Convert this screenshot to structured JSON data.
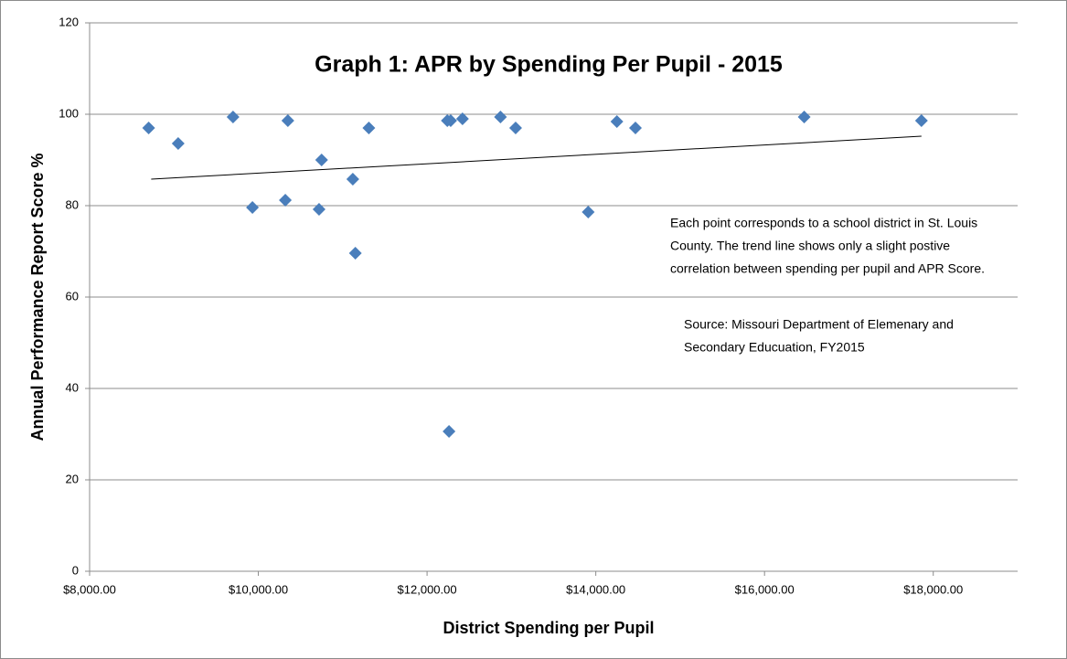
{
  "chart_data": {
    "type": "scatter",
    "title": "Graph 1: APR by Spending Per Pupil - 2015",
    "x_label": "District Spending per Pupil",
    "y_label": "Annual Performance Report Score %",
    "color": "#4a7ebb",
    "x": [
      8700,
      9050,
      9700,
      9930,
      10320,
      10350,
      10720,
      10750,
      11120,
      11150,
      11310,
      12240,
      12280,
      12260,
      12420,
      12870,
      13050,
      13910,
      14250,
      14470,
      16470,
      17860
    ],
    "values": [
      97,
      93.6,
      99.4,
      79.6,
      81.2,
      98.6,
      79.2,
      90,
      85.8,
      69.6,
      97,
      98.6,
      98.6,
      30.6,
      99,
      99.4,
      97,
      78.6,
      98.4,
      97,
      99.4,
      98.6
    ],
    "trendline": {
      "x": [
        8730,
        17860
      ],
      "values": [
        85.8,
        95.2
      ]
    },
    "xlim": [
      8000,
      19000
    ],
    "ylim": [
      0,
      120
    ],
    "xticks": [
      {
        "value": 8000,
        "label": "$8,000.00"
      },
      {
        "value": 10000,
        "label": "$10,000.00"
      },
      {
        "value": 12000,
        "label": "$12,000.00"
      },
      {
        "value": 14000,
        "label": "$14,000.00"
      },
      {
        "value": 16000,
        "label": "$16,000.00"
      },
      {
        "value": 18000,
        "label": "$18,000.00"
      }
    ],
    "yticks": [
      0,
      20,
      40,
      60,
      80,
      100,
      120
    ],
    "grid": true,
    "annotations": [
      {
        "lines": [
          "Each point corresponds to a school district in St. Louis",
          "County.  The trend line shows only a slight postive",
          "correlation between spending per pupil and APR Score."
        ]
      },
      {
        "lines": [
          "Source: Missouri Department of Elemenary and",
          "Secondary Educuation, FY2015"
        ]
      }
    ]
  }
}
